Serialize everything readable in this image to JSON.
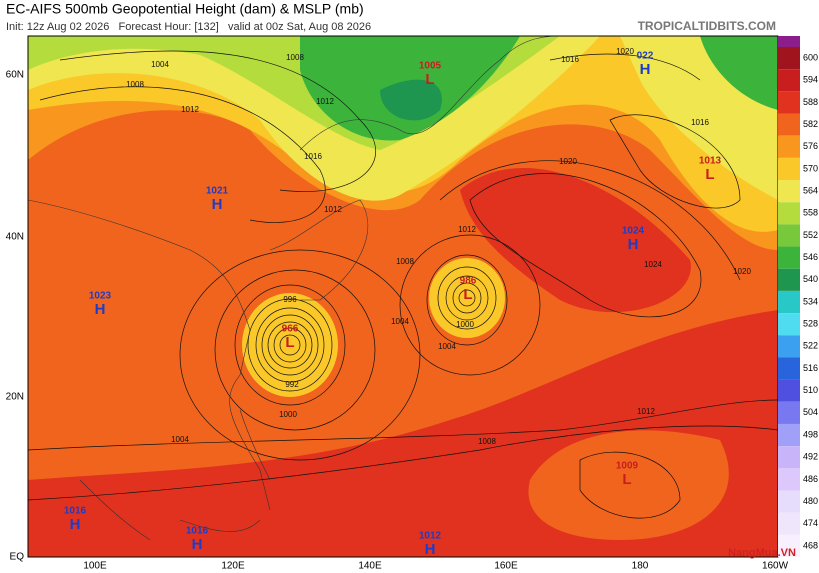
{
  "header": {
    "title": "EC-AIFS 500mb Geopotential Height (dam) & MSLP (mb)",
    "subtitle": "Init: 12z Aug 02 2026   Forecast Hour: [132]   valid at 00z Sat, Aug 08 2026",
    "site": "TROPICALTIDBITS.COM"
  },
  "lat_labels": [
    "60N",
    "40N",
    "20N",
    "EQ"
  ],
  "lon_labels": [
    "100E",
    "120E",
    "140E",
    "160E",
    "180",
    "160W"
  ],
  "centers": [
    {
      "letter": "L",
      "value": "1005"
    },
    {
      "letter": "H",
      "value": "022"
    },
    {
      "letter": "L",
      "value": "1013"
    },
    {
      "letter": "H",
      "value": "1021"
    },
    {
      "letter": "H",
      "value": "1024"
    },
    {
      "letter": "L",
      "value": "986"
    },
    {
      "letter": "L",
      "value": "966"
    },
    {
      "letter": "H",
      "value": "1023"
    },
    {
      "letter": "L",
      "value": "1009"
    },
    {
      "letter": "H",
      "value": "1016"
    },
    {
      "letter": "H",
      "value": "1016"
    },
    {
      "letter": "H",
      "value": "1012"
    }
  ],
  "isobar_labels": [
    "1008",
    "1004",
    "1008",
    "1012",
    "1012",
    "1016",
    "1012",
    "1016",
    "1020",
    "1016",
    "1020",
    "1012",
    "1008",
    "1004",
    "1000",
    "1004",
    "1020",
    "1024",
    "1000",
    "1004",
    "1008",
    "1012",
    "996",
    "992"
  ],
  "colorbar": [
    {
      "value": "600",
      "color": "#a0141e"
    },
    {
      "value": "594",
      "color": "#c81e1e"
    },
    {
      "value": "588",
      "color": "#e0321e"
    },
    {
      "value": "582",
      "color": "#f0641e"
    },
    {
      "value": "576",
      "color": "#f8961e"
    },
    {
      "value": "570",
      "color": "#fac828"
    },
    {
      "value": "564",
      "color": "#f0e650"
    },
    {
      "value": "558",
      "color": "#b4dc3c"
    },
    {
      "value": "552",
      "color": "#78c83c"
    },
    {
      "value": "546",
      "color": "#3cb43c"
    },
    {
      "value": "540",
      "color": "#1e9650"
    },
    {
      "value": "534",
      "color": "#28c8c8"
    },
    {
      "value": "528",
      "color": "#50dcf0"
    },
    {
      "value": "522",
      "color": "#3ca0f0"
    },
    {
      "value": "516",
      "color": "#2864dc"
    },
    {
      "value": "510",
      "color": "#5050e0"
    },
    {
      "value": "504",
      "color": "#7878f0"
    },
    {
      "value": "498",
      "color": "#a0a0f8"
    },
    {
      "value": "492",
      "color": "#c8b4f8"
    },
    {
      "value": "486",
      "color": "#dcc8fa"
    },
    {
      "value": "480",
      "color": "#e6dcfc"
    },
    {
      "value": "474",
      "color": "#f0e6fc"
    },
    {
      "value": "468",
      "color": "#f8f0fe"
    }
  ],
  "watermark": "NangMua.VN"
}
